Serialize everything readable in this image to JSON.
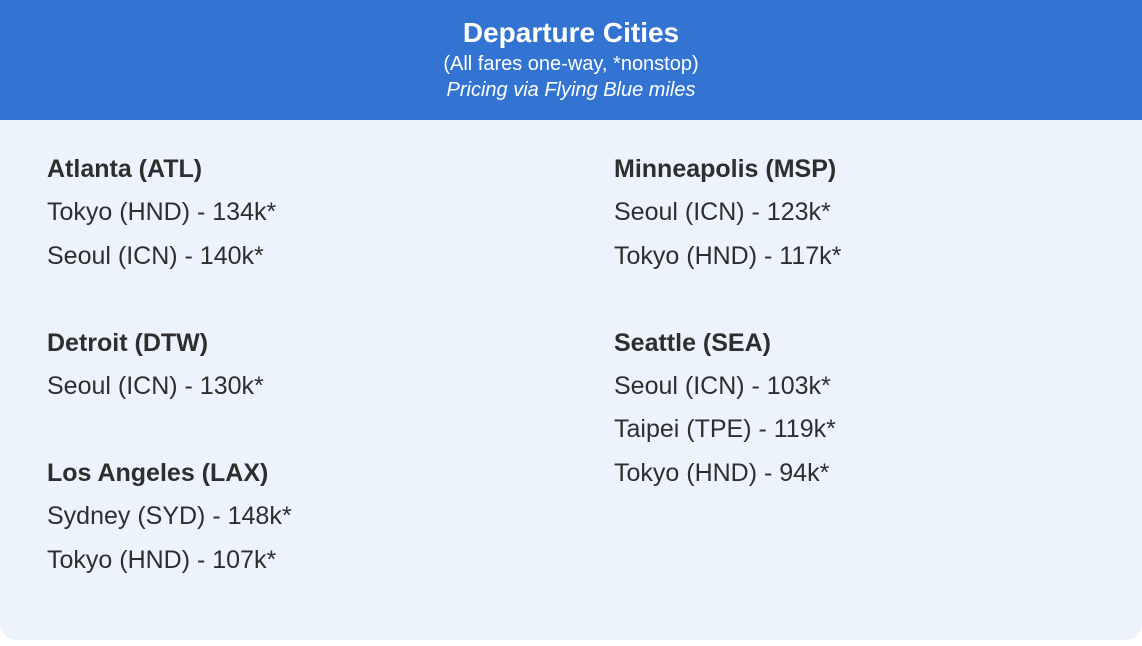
{
  "header": {
    "title": "Departure Cities",
    "subtitle": "(All fares one-way, *nonstop)",
    "note": "Pricing via Flying Blue miles"
  },
  "columns": [
    {
      "groups": [
        {
          "city": "Atlanta (ATL)",
          "fares": [
            "Tokyo (HND) - 134k*",
            "Seoul (ICN) - 140k*"
          ]
        },
        {
          "city": "Detroit (DTW)",
          "fares": [
            "Seoul (ICN) - 130k*"
          ]
        },
        {
          "city": "Los Angeles (LAX)",
          "fares": [
            "Sydney (SYD) - 148k*",
            "Tokyo (HND) - 107k*"
          ]
        }
      ]
    },
    {
      "groups": [
        {
          "city": "Minneapolis (MSP)",
          "fares": [
            "Seoul (ICN) - 123k*",
            "Tokyo (HND) - 117k*"
          ]
        },
        {
          "city": "Seattle (SEA)",
          "fares": [
            "Seoul (ICN) - 103k*",
            "Taipei (TPE) - 119k*",
            "Tokyo (HND) - 94k*"
          ]
        }
      ]
    }
  ],
  "colors": {
    "header_bg": "#3374d2",
    "header_text": "#ffffff",
    "card_bg": "#edf3fc",
    "text": "#2e2e2e",
    "page_bg": "#ffffff"
  }
}
